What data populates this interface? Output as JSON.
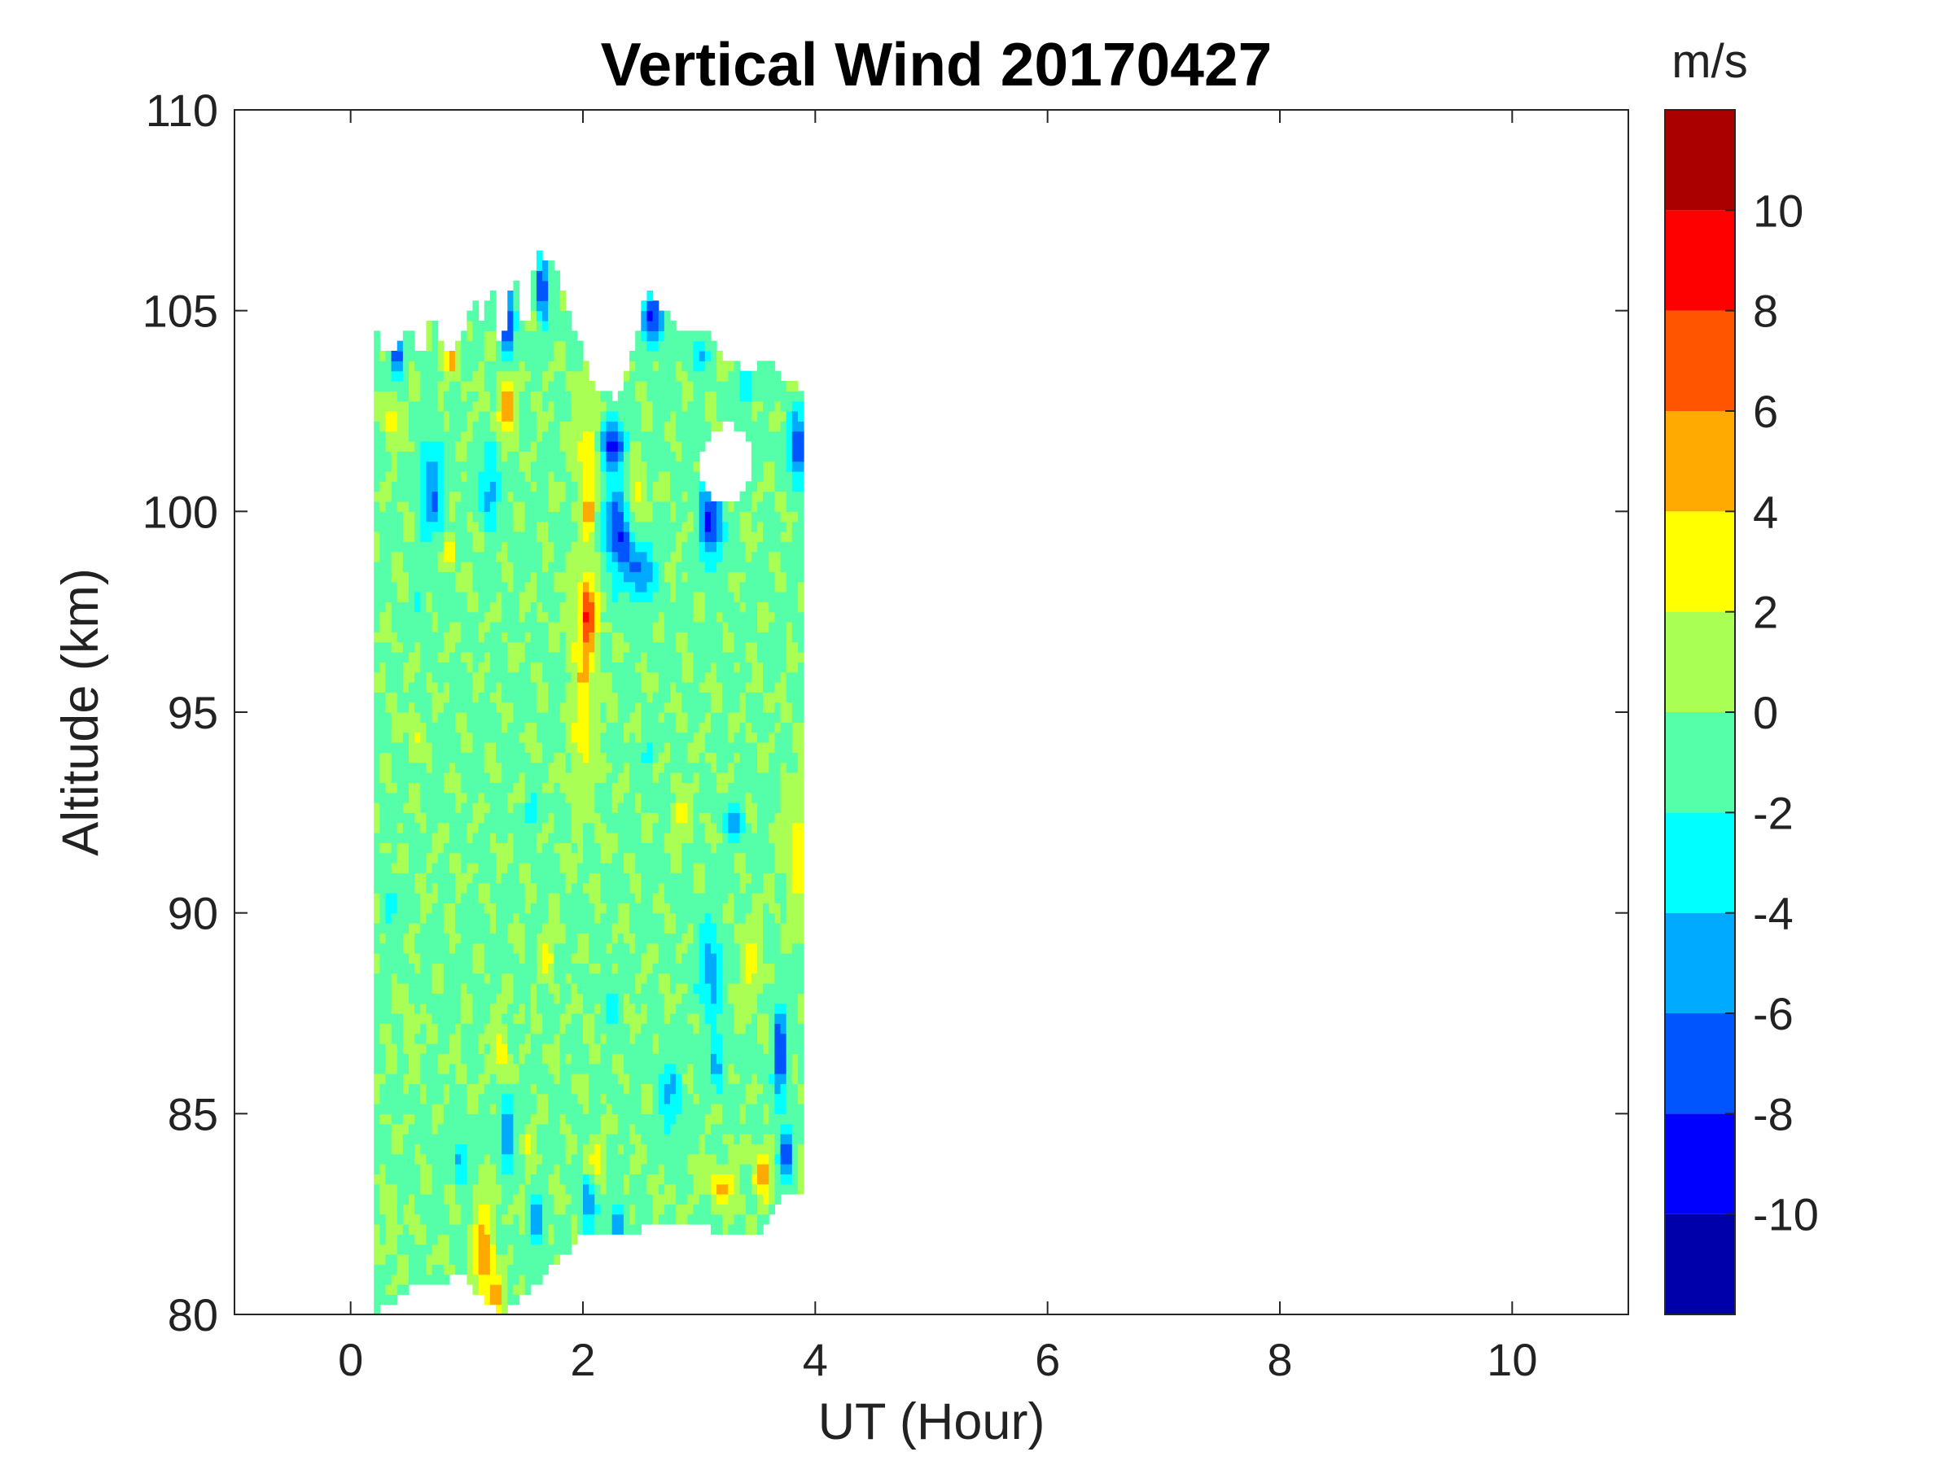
{
  "chart_data": {
    "type": "heatmap",
    "subtype": "filled-contour",
    "title": "Vertical Wind 20170427",
    "xlabel": "UT (Hour)",
    "ylabel": "Altitude (km)",
    "xlim": [
      -1,
      11
    ],
    "ylim": [
      80,
      110
    ],
    "x_ticks": [
      0,
      2,
      4,
      6,
      8,
      10
    ],
    "y_ticks": [
      80,
      85,
      90,
      95,
      100,
      105,
      110
    ],
    "data_extent": {
      "x": [
        0.2,
        3.9
      ],
      "y": [
        80,
        106.5
      ]
    },
    "colorbar": {
      "unit_label": "m/s",
      "range": [
        -12,
        12
      ],
      "levels": [
        -12,
        -10,
        -8,
        -6,
        -4,
        -2,
        0,
        2,
        4,
        6,
        8,
        10,
        12
      ],
      "ticks": [
        -10,
        -8,
        -6,
        -4,
        -2,
        0,
        2,
        4,
        6,
        8,
        10
      ],
      "colors": [
        "#0000aa",
        "#0000ff",
        "#0055ff",
        "#00aaff",
        "#00ffff",
        "#55ffaa",
        "#aaff55",
        "#ffff00",
        "#ffaa00",
        "#ff5500",
        "#ff0000",
        "#aa0000"
      ]
    },
    "grid": false,
    "colormap": "jet"
  }
}
